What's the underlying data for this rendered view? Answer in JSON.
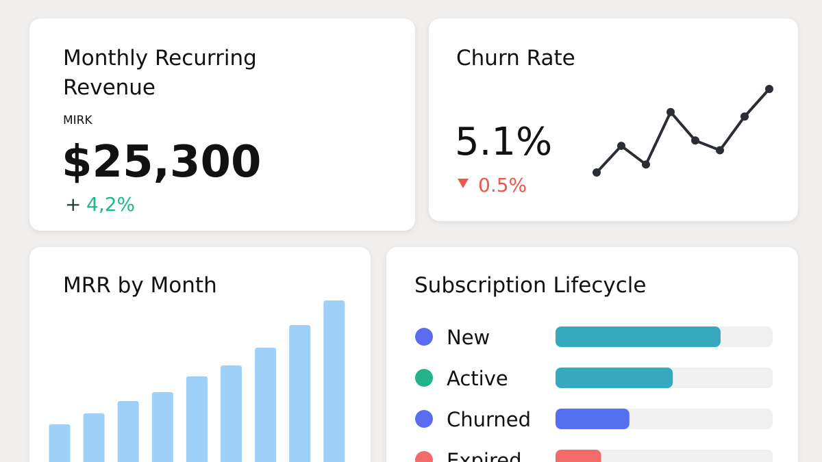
{
  "mrr_card": {
    "title_line1": "Monthly Recurring",
    "title_line2": "Revenue",
    "label": "MIRK",
    "value": "$25,300",
    "delta_sign": "+",
    "delta": "4,2%"
  },
  "churn_card": {
    "title": "Churn Rate",
    "value": "5.1%",
    "delta": "0.5%"
  },
  "chart_data": [
    {
      "type": "line",
      "color": "#2a2d33",
      "values": [
        6,
        36,
        15,
        74,
        42,
        31,
        69,
        100
      ]
    },
    {
      "type": "bar",
      "title": "MRR by Month",
      "color": "#9fd0f7",
      "categories": [
        null,
        null,
        null,
        null,
        null,
        null,
        null,
        null,
        null
      ],
      "values": [
        70,
        86,
        104,
        117,
        140,
        156,
        182,
        215,
        251
      ]
    },
    {
      "type": "hbar",
      "title": "Subscription Lifecycle",
      "categories": [
        "New",
        "Active",
        "Churned",
        "Expired"
      ],
      "values": [
        76,
        54,
        34,
        21
      ],
      "xlim": [
        0,
        100
      ],
      "colors": [
        "#35a9bd",
        "#35a9bd",
        "#5470f0",
        "#f26b6b"
      ],
      "dot_colors": [
        "#5b6cf0",
        "#22b38a",
        "#5b6cf0",
        "#f26b6b"
      ]
    }
  ]
}
